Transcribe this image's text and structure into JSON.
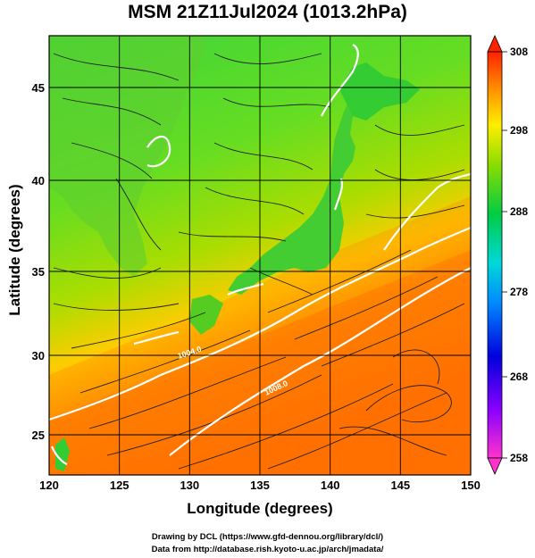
{
  "title": "MSM 21Z11Jul2024 (1013.2hPa)",
  "x_axis": {
    "label": "Longitude (degrees)",
    "ticks": [
      "120",
      "125",
      "130",
      "135",
      "140",
      "145",
      "150"
    ]
  },
  "y_axis": {
    "label": "Latitude  (degrees)",
    "ticks": [
      "25",
      "30",
      "35",
      "40",
      "45"
    ]
  },
  "colorbar": {
    "ticks": [
      "258",
      "268",
      "278",
      "288",
      "298",
      "308"
    ],
    "colors": [
      "#ff33cc",
      "#8800ff",
      "#0000dd",
      "#0088ff",
      "#00d8d8",
      "#00cc44",
      "#88dd00",
      "#ffee00",
      "#ff9900",
      "#ff2200"
    ]
  },
  "contour_labels": {
    "a": "1004.0",
    "b": "1008.0"
  },
  "credits": {
    "line1": "Drawing by DCL (https://www.gfd-dennou.org/library/dcl/)",
    "line2": "Data from http://database.rish.kyoto-u.ac.jp/arch/jmadata/"
  }
}
